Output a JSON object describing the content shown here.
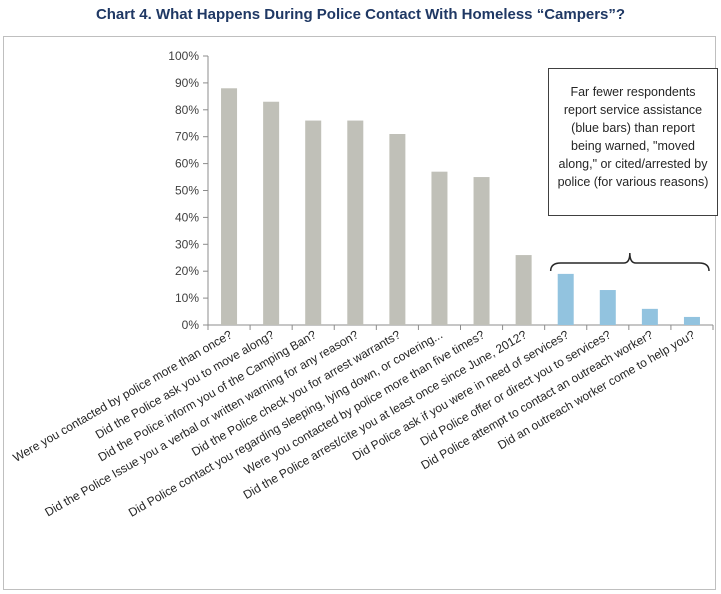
{
  "chart_data": {
    "type": "bar",
    "title": "Chart 4.  What Happens During Police Contact With Homeless “Campers”?",
    "xlabel": "",
    "ylabel": "",
    "ylim": [
      0,
      100
    ],
    "yticks": [
      "0%",
      "10%",
      "20%",
      "30%",
      "40%",
      "50%",
      "60%",
      "70%",
      "80%",
      "90%",
      "100%"
    ],
    "categories": [
      "Were you contacted by police more than once?",
      "Did the Police ask you to move along?",
      "Did the Police inform you of the Camping Ban?",
      "Did the Police Issue you a verbal or written warning for any reason?",
      "Did the Police check you for arrest warrants?",
      "Did Police contact you regarding sleeping, lying down, or covering...",
      "Were you contacted by police more than five times?",
      "Did the Police arrest/cite you at least once since June, 2012?",
      "Did Police ask if you were in need of services?",
      "Did Police offer or direct you to services?",
      "Did Police attempt to contact an outreach worker?",
      "Did an outreach worker come to help you?"
    ],
    "values": [
      88,
      83,
      76,
      76,
      71,
      57,
      55,
      26,
      19,
      13,
      6,
      3
    ],
    "bar_colors": [
      "#c0c0b8",
      "#c0c0b8",
      "#c0c0b8",
      "#c0c0b8",
      "#c0c0b8",
      "#c0c0b8",
      "#c0c0b8",
      "#c0c0b8",
      "#92c3df",
      "#92c3df",
      "#92c3df",
      "#92c3df"
    ],
    "grid": false,
    "annotation": "Far fewer respondents report service assistance (blue bars) than report being warned, \"moved along,\" or cited/arrested by police  (for various reasons)"
  }
}
